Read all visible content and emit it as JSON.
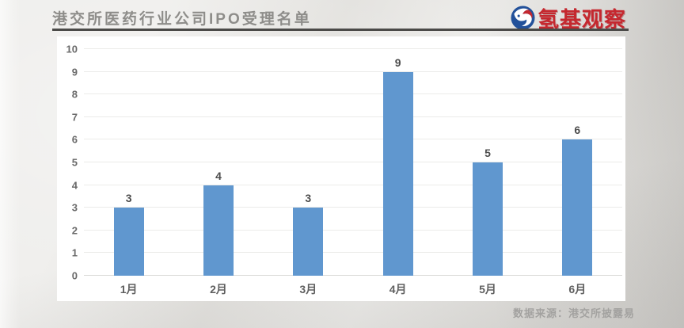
{
  "header": {
    "title": "港交所医药行业公司IPO受理名单",
    "brand": {
      "name": "氢基观察",
      "color": "#c5282f",
      "icon": "swirl-globe-icon",
      "icon_colors": {
        "blue": "#23519a",
        "red": "#c5282f",
        "white": "#ffffff"
      }
    }
  },
  "footer": {
    "source": "数据来源：港交所披露易"
  },
  "chart_data": {
    "type": "bar",
    "title": "港交所医药行业公司IPO受理名单",
    "categories": [
      "1月",
      "2月",
      "3月",
      "4月",
      "5月",
      "6月"
    ],
    "values": [
      3,
      4,
      3,
      9,
      5,
      6
    ],
    "xlabel": "",
    "ylabel": "",
    "ylim": [
      0,
      10
    ],
    "ytick_step": 1,
    "grid": true,
    "legend": "none",
    "bar_color": "#6097cf",
    "value_labels": true
  }
}
